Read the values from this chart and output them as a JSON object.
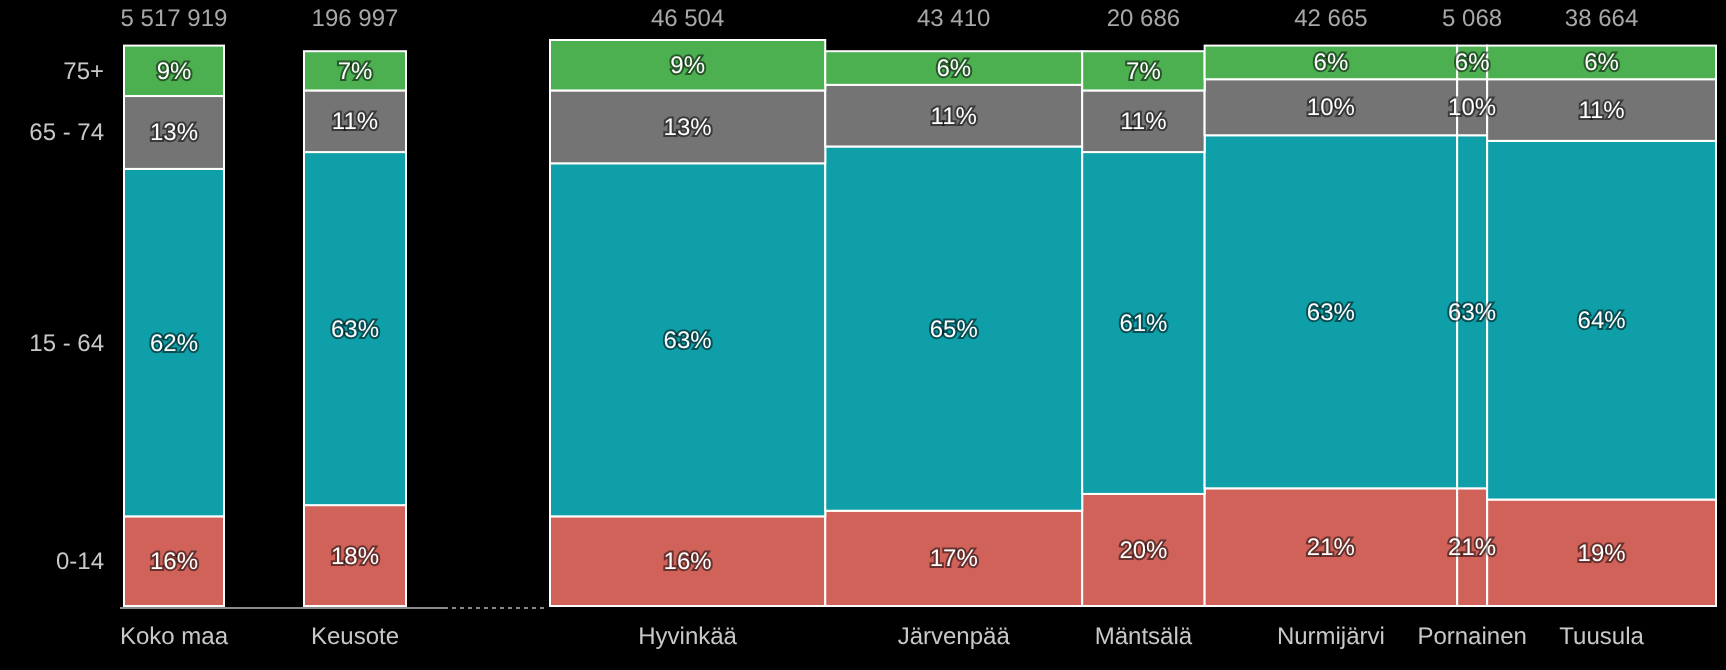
{
  "chart_data": {
    "type": "bar",
    "stacked": true,
    "categories": [
      "Koko maa",
      "Keusote",
      "Hyvinkää",
      "Järvenpää",
      "Mäntsälä",
      "Nurmijärvi",
      "Pornainen",
      "Tuusula"
    ],
    "annotations": [
      "5 517 919",
      "196 997",
      "46 504",
      "43 410",
      "20 686",
      "42 665",
      "5 068",
      "38 664"
    ],
    "ylim": [
      0,
      101
    ],
    "series": [
      {
        "name": "0-14",
        "color": "#d0625a",
        "values": [
          16,
          18,
          16,
          17,
          20,
          21,
          21,
          19
        ],
        "value_labels": [
          "16%",
          "18%",
          "16%",
          "17%",
          "20%",
          "21%",
          "21%",
          "19%"
        ]
      },
      {
        "name": "15 - 64",
        "color": "#0f9fa8",
        "values": [
          62,
          63,
          63,
          65,
          61,
          63,
          63,
          64
        ],
        "value_labels": [
          "62%",
          "63%",
          "63%",
          "65%",
          "61%",
          "63%",
          "63%",
          "64%"
        ]
      },
      {
        "name": "65 - 74",
        "color": "#747474",
        "values": [
          13,
          11,
          13,
          11,
          11,
          10,
          10,
          11
        ],
        "value_labels": [
          "13%",
          "11%",
          "13%",
          "11%",
          "11%",
          "10%",
          "10%",
          "11%"
        ]
      },
      {
        "name": "75+",
        "color": "#4caf50",
        "values": [
          9,
          7,
          9,
          6,
          7,
          6,
          6,
          6
        ],
        "value_labels": [
          "9%",
          "7%",
          "9%",
          "6%",
          "7%",
          "6%",
          "6%",
          "6%"
        ]
      }
    ]
  }
}
